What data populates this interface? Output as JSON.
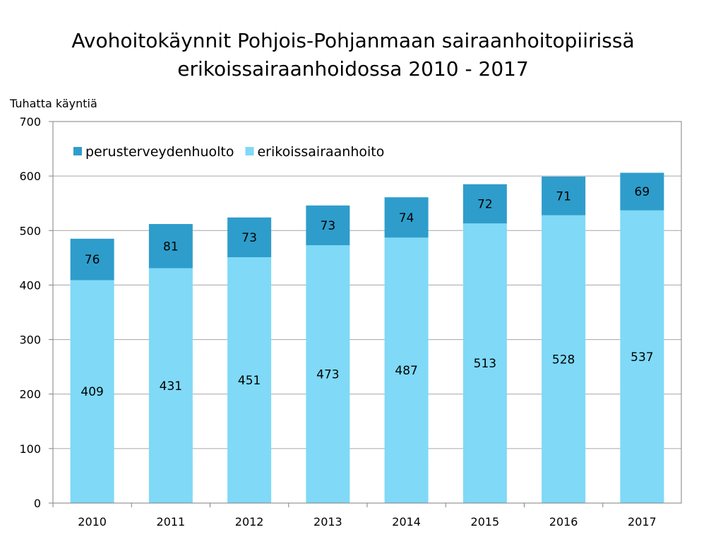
{
  "chart_data": {
    "type": "bar",
    "stacked": true,
    "title": [
      "Avohoitokäynnit Pohjois-Pohjanmaan sairaanhoitopiirissä",
      "erikoissairaanhoidossa 2010 - 2017"
    ],
    "ylabel": "Tuhatta käyntiä",
    "xlabel": "",
    "ylim": [
      0,
      700
    ],
    "yticks": [
      0,
      100,
      200,
      300,
      400,
      500,
      600,
      700
    ],
    "grid": true,
    "legend_position": "top-left",
    "categories": [
      "2010",
      "2011",
      "2012",
      "2013",
      "2014",
      "2015",
      "2016",
      "2017"
    ],
    "series": [
      {
        "name": "erikoissairaanhoito",
        "color": "#7FD9F7",
        "values": [
          409,
          431,
          451,
          473,
          487,
          513,
          528,
          537
        ]
      },
      {
        "name": "perusterveydenhuolto",
        "color": "#2E9DCB",
        "values": [
          76,
          81,
          73,
          73,
          74,
          72,
          71,
          69
        ]
      }
    ],
    "legend_order": [
      "perusterveydenhuolto",
      "erikoissairaanhoito"
    ]
  }
}
